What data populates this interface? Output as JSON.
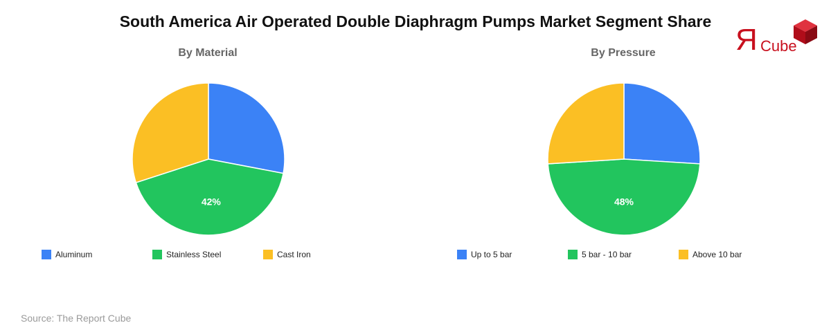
{
  "title": "South America Air Operated Double Diaphragm Pumps Market Segment Share",
  "logo": {
    "icon": "report-cube-logo",
    "mark": "Я",
    "word": "Cube",
    "color": "#c8101e"
  },
  "source": "Source: The Report Cube",
  "chart_data": [
    {
      "type": "pie",
      "title": "By Material",
      "categories": [
        "Aluminum",
        "Stainless Steel",
        "Cast Iron"
      ],
      "values": [
        28,
        42,
        30
      ],
      "colors": [
        "#3b82f6",
        "#22c55e",
        "#fbbf24"
      ],
      "data_labels": [
        "",
        "42%",
        ""
      ],
      "legend": "bottom"
    },
    {
      "type": "pie",
      "title": "By Pressure",
      "categories": [
        "Up to 5 bar",
        "5 bar - 10 bar",
        "Above 10 bar"
      ],
      "values": [
        26,
        48,
        26
      ],
      "colors": [
        "#3b82f6",
        "#22c55e",
        "#fbbf24"
      ],
      "data_labels": [
        "",
        "48%",
        ""
      ],
      "legend": "bottom"
    }
  ]
}
